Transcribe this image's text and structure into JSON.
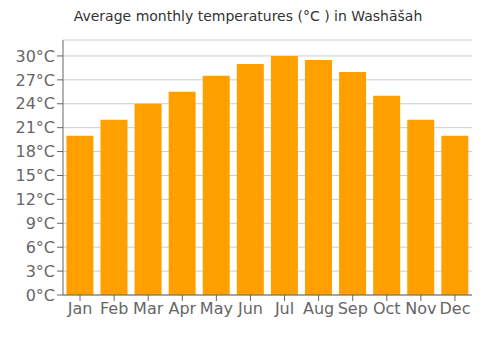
{
  "chart_data": {
    "type": "bar",
    "title": "Average monthly temperatures (°C ) in Washāšah",
    "categories": [
      "Jan",
      "Feb",
      "Mar",
      "Apr",
      "May",
      "Jun",
      "Jul",
      "Aug",
      "Sep",
      "Oct",
      "Nov",
      "Dec"
    ],
    "values": [
      20.0,
      22.0,
      24.0,
      25.5,
      27.5,
      29.0,
      30.0,
      29.5,
      28.0,
      25.0,
      22.0,
      20.0
    ],
    "color": "#FFA000",
    "ylim": [
      0,
      32
    ],
    "yticks": [
      {
        "value": 0,
        "label": "0°C"
      },
      {
        "value": 3,
        "label": "3°C"
      },
      {
        "value": 6,
        "label": "6°C"
      },
      {
        "value": 9,
        "label": "9°C"
      },
      {
        "value": 12,
        "label": "12°C"
      },
      {
        "value": 15,
        "label": "15°C"
      },
      {
        "value": 18,
        "label": "18°C"
      },
      {
        "value": 21,
        "label": "21°C"
      },
      {
        "value": 24,
        "label": "24°C"
      },
      {
        "value": 27,
        "label": "27°C"
      },
      {
        "value": 30,
        "label": "30°C"
      }
    ],
    "grid": true
  }
}
